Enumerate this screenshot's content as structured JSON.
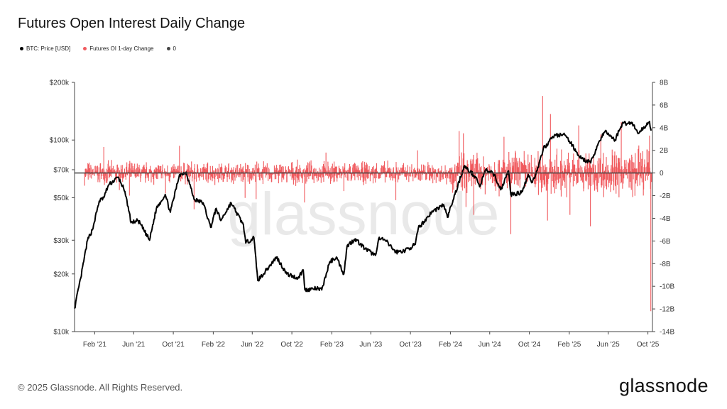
{
  "title": "Futures Open Interest Daily Change",
  "footer": "© 2025 Glassnode. All Rights Reserved.",
  "brand": "glassnode",
  "watermark": "glassnode",
  "colors": {
    "price": "#000000",
    "oi_change": "#f05a5e",
    "zero": "#444444"
  },
  "chart_data": {
    "type": "line",
    "title": "Futures Open Interest Daily Change",
    "legend": [
      {
        "name": "BTC: Price [USD]",
        "color": "#000000"
      },
      {
        "name": "Futures OI 1-day Change",
        "color": "#f05a5e"
      },
      {
        "name": "0",
        "color": "#444444"
      }
    ],
    "legend_position": "top-left",
    "x_range": [
      "2020-12-01",
      "2025-10-15"
    ],
    "x_ticks": [
      {
        "date": "2021-02-01",
        "label": "Feb '21"
      },
      {
        "date": "2021-06-01",
        "label": "Jun '21"
      },
      {
        "date": "2021-10-01",
        "label": "Oct '21"
      },
      {
        "date": "2022-02-01",
        "label": "Feb '22"
      },
      {
        "date": "2022-06-01",
        "label": "Jun '22"
      },
      {
        "date": "2022-10-01",
        "label": "Oct '22"
      },
      {
        "date": "2023-02-01",
        "label": "Feb '23"
      },
      {
        "date": "2023-06-01",
        "label": "Jun '23"
      },
      {
        "date": "2023-10-01",
        "label": "Oct '23"
      },
      {
        "date": "2024-02-01",
        "label": "Feb '24"
      },
      {
        "date": "2024-06-01",
        "label": "Jun '24"
      },
      {
        "date": "2024-10-01",
        "label": "Oct '24"
      },
      {
        "date": "2025-02-01",
        "label": "Feb '25"
      },
      {
        "date": "2025-06-01",
        "label": "Jun '25"
      },
      {
        "date": "2025-10-01",
        "label": "Oct '25"
      }
    ],
    "y_left": {
      "scale": "log",
      "range": [
        10000,
        200000
      ],
      "ticks": [
        {
          "value": 200000,
          "label": "$200k"
        },
        {
          "value": 100000,
          "label": "$100k"
        },
        {
          "value": 70000,
          "label": "$70k"
        },
        {
          "value": 50000,
          "label": "$50k"
        },
        {
          "value": 30000,
          "label": "$30k"
        },
        {
          "value": 20000,
          "label": "$20k"
        },
        {
          "value": 10000,
          "label": "$10k"
        }
      ]
    },
    "y_right": {
      "scale": "linear",
      "range": [
        -14000000000,
        8000000000
      ],
      "ticks": [
        {
          "value": 8000000000,
          "label": "8B"
        },
        {
          "value": 6000000000,
          "label": "6B"
        },
        {
          "value": 4000000000,
          "label": "4B"
        },
        {
          "value": 2000000000,
          "label": "2B"
        },
        {
          "value": 0,
          "label": "0"
        },
        {
          "value": -2000000000,
          "label": "-2B"
        },
        {
          "value": -4000000000,
          "label": "-4B"
        },
        {
          "value": -6000000000,
          "label": "-6B"
        },
        {
          "value": -8000000000,
          "label": "-8B"
        },
        {
          "value": -10000000000,
          "label": "-10B"
        },
        {
          "value": -12000000000,
          "label": "-12B"
        },
        {
          "value": -14000000000,
          "label": "-14B"
        }
      ]
    },
    "series": [
      {
        "name": "BTC: Price [USD]",
        "axis": "left",
        "points": [
          [
            "2020-12-01",
            13200
          ],
          [
            "2020-12-20",
            19000
          ],
          [
            "2021-01-10",
            30000
          ],
          [
            "2021-01-25",
            34000
          ],
          [
            "2021-02-15",
            48000
          ],
          [
            "2021-03-01",
            50000
          ],
          [
            "2021-03-15",
            58000
          ],
          [
            "2021-04-14",
            64000
          ],
          [
            "2021-05-01",
            56000
          ],
          [
            "2021-05-15",
            45000
          ],
          [
            "2021-05-24",
            37000
          ],
          [
            "2021-06-15",
            38000
          ],
          [
            "2021-07-20",
            30000
          ],
          [
            "2021-08-10",
            44000
          ],
          [
            "2021-09-06",
            52000
          ],
          [
            "2021-09-22",
            42000
          ],
          [
            "2021-10-20",
            66000
          ],
          [
            "2021-11-10",
            68000
          ],
          [
            "2021-12-04",
            49000
          ],
          [
            "2022-01-01",
            47000
          ],
          [
            "2022-01-24",
            35000
          ],
          [
            "2022-02-10",
            44000
          ],
          [
            "2022-02-24",
            38000
          ],
          [
            "2022-03-28",
            47000
          ],
          [
            "2022-05-05",
            36000
          ],
          [
            "2022-05-12",
            29000
          ],
          [
            "2022-06-06",
            31000
          ],
          [
            "2022-06-18",
            18500
          ],
          [
            "2022-07-15",
            21000
          ],
          [
            "2022-08-15",
            24500
          ],
          [
            "2022-09-15",
            20000
          ],
          [
            "2022-10-20",
            19000
          ],
          [
            "2022-11-05",
            21000
          ],
          [
            "2022-11-10",
            16500
          ],
          [
            "2022-12-15",
            16800
          ],
          [
            "2023-01-01",
            16500
          ],
          [
            "2023-01-25",
            23000
          ],
          [
            "2023-02-15",
            24500
          ],
          [
            "2023-03-10",
            20000
          ],
          [
            "2023-03-20",
            28000
          ],
          [
            "2023-04-14",
            30500
          ],
          [
            "2023-05-15",
            27000
          ],
          [
            "2023-06-15",
            25000
          ],
          [
            "2023-06-25",
            30500
          ],
          [
            "2023-07-15",
            30000
          ],
          [
            "2023-08-17",
            26000
          ],
          [
            "2023-09-15",
            26500
          ],
          [
            "2023-10-16",
            28500
          ],
          [
            "2023-10-25",
            34500
          ],
          [
            "2023-12-05",
            42000
          ],
          [
            "2024-01-11",
            46000
          ],
          [
            "2024-01-23",
            39500
          ],
          [
            "2024-02-15",
            52000
          ],
          [
            "2024-03-14",
            73000
          ],
          [
            "2024-04-20",
            64000
          ],
          [
            "2024-05-01",
            57000
          ],
          [
            "2024-05-20",
            70000
          ],
          [
            "2024-06-15",
            66000
          ],
          [
            "2024-07-05",
            55000
          ],
          [
            "2024-07-29",
            69000
          ],
          [
            "2024-08-05",
            52000
          ],
          [
            "2024-09-06",
            53000
          ],
          [
            "2024-09-28",
            66000
          ],
          [
            "2024-10-10",
            60000
          ],
          [
            "2024-10-29",
            72000
          ],
          [
            "2024-11-13",
            90000
          ],
          [
            "2024-12-17",
            106000
          ],
          [
            "2025-01-20",
            106000
          ],
          [
            "2025-02-25",
            86000
          ],
          [
            "2025-03-10",
            80000
          ],
          [
            "2025-04-08",
            76000
          ],
          [
            "2025-05-01",
            96000
          ],
          [
            "2025-05-22",
            111000
          ],
          [
            "2025-06-22",
            100000
          ],
          [
            "2025-07-14",
            122000
          ],
          [
            "2025-08-14",
            123000
          ],
          [
            "2025-09-01",
            108000
          ],
          [
            "2025-10-06",
            125000
          ],
          [
            "2025-10-11",
            112000
          ]
        ]
      },
      {
        "name": "Futures OI 1-day Change",
        "axis": "right",
        "peaks": [
          [
            "2021-03-01",
            2300000000
          ],
          [
            "2021-04-18",
            -1500000000
          ],
          [
            "2021-05-19",
            -2000000000
          ],
          [
            "2021-09-07",
            -1800000000
          ],
          [
            "2021-10-20",
            2400000000
          ],
          [
            "2021-12-04",
            -3200000000
          ],
          [
            "2022-05-10",
            -2200000000
          ],
          [
            "2022-06-13",
            -2300000000
          ],
          [
            "2022-11-09",
            -2600000000
          ],
          [
            "2023-01-14",
            1800000000
          ],
          [
            "2023-03-10",
            -1600000000
          ],
          [
            "2023-08-17",
            -2400000000
          ],
          [
            "2023-10-23",
            2000000000
          ],
          [
            "2024-02-28",
            3700000000
          ],
          [
            "2024-03-12",
            3500000000
          ],
          [
            "2024-03-20",
            -3000000000
          ],
          [
            "2024-04-13",
            -3700000000
          ],
          [
            "2024-07-15",
            3200000000
          ],
          [
            "2024-08-05",
            -5400000000
          ],
          [
            "2024-11-11",
            6800000000
          ],
          [
            "2024-11-26",
            -4200000000
          ],
          [
            "2024-12-05",
            5200000000
          ],
          [
            "2025-02-03",
            -3700000000
          ],
          [
            "2025-03-02",
            4200000000
          ],
          [
            "2025-04-07",
            -4700000000
          ],
          [
            "2025-05-09",
            3400000000
          ],
          [
            "2025-07-11",
            4500000000
          ],
          [
            "2025-10-06",
            3300000000
          ],
          [
            "2025-10-10",
            -12200000000
          ]
        ],
        "typical_amplitude": 1200000000
      },
      {
        "name": "0",
        "axis": "right",
        "value": 0
      }
    ]
  }
}
